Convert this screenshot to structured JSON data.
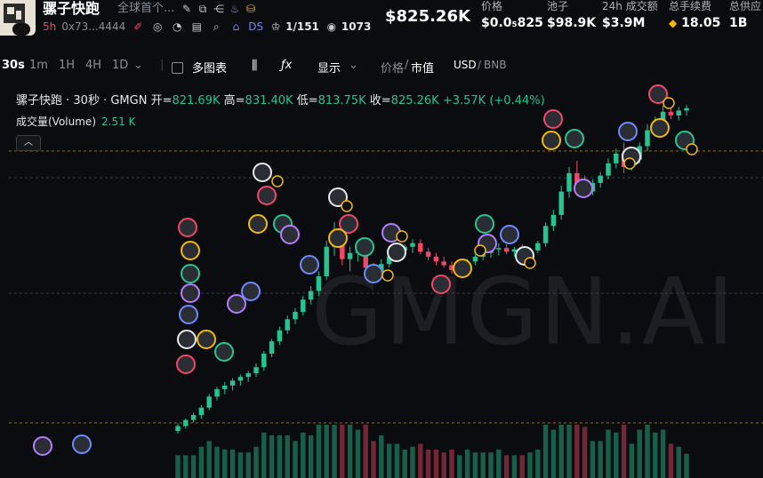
{
  "token": {
    "name": "骡子快跑",
    "desc": "全球首个...",
    "age": "5h",
    "address": "0x73...4444",
    "ds_label": "DS",
    "holders_ratio": "1/151",
    "views": "1073",
    "icons": [
      "edit-icon",
      "copy-icon",
      "share-icon",
      "fire-icon",
      "bag-icon",
      "pen-icon",
      "globe-icon",
      "chart-icon",
      "note-icon",
      "search-icon",
      "home-icon",
      "crown-icon",
      "eye-icon"
    ]
  },
  "header": {
    "price_main": "$825.26K",
    "stats": [
      {
        "label": "价格",
        "value": "$0.0₅825"
      },
      {
        "label": "池子",
        "value": "$98.9K"
      },
      {
        "label": "24h 成交额",
        "value": "$3.9M"
      },
      {
        "label": "总手续费",
        "value": "18.05"
      },
      {
        "label": "总供应",
        "value": "1B"
      }
    ]
  },
  "toolbar": {
    "intervals": [
      "30s",
      "1m",
      "1H",
      "4H",
      "1D"
    ],
    "active_interval": "30s",
    "multi_chart": "多图表",
    "display": "显示",
    "price_label": "价格",
    "mcap_label": "市值",
    "usd": "USD",
    "bnb": "BNB"
  },
  "legend": {
    "title": "骡子快跑 · 30秒 · GMGN",
    "open_label": "开=",
    "open": "821.69K",
    "high_label": "高=",
    "high": "831.40K",
    "low_label": "低=",
    "low": "813.75K",
    "close_label": "收=",
    "close": "825.26K",
    "change": "+3.57K (+0.44%)",
    "volume_label": "成交量(Volume)",
    "volume": "2.51 K"
  },
  "watermark": "GMGN.AI",
  "colors": {
    "up": "#27c48f",
    "down": "#f04866",
    "bg": "#0b0c0f",
    "accent": "#f0b90b"
  },
  "chart_data": {
    "type": "candlestick",
    "candles": [
      {
        "o": 300,
        "h": 312,
        "l": 296,
        "c": 308
      },
      {
        "o": 308,
        "h": 320,
        "l": 304,
        "c": 318
      },
      {
        "o": 318,
        "h": 330,
        "l": 314,
        "c": 326
      },
      {
        "o": 326,
        "h": 342,
        "l": 320,
        "c": 338
      },
      {
        "o": 338,
        "h": 360,
        "l": 334,
        "c": 356
      },
      {
        "o": 356,
        "h": 372,
        "l": 350,
        "c": 368
      },
      {
        "o": 368,
        "h": 380,
        "l": 360,
        "c": 374
      },
      {
        "o": 374,
        "h": 386,
        "l": 366,
        "c": 382
      },
      {
        "o": 382,
        "h": 392,
        "l": 374,
        "c": 388
      },
      {
        "o": 388,
        "h": 398,
        "l": 380,
        "c": 394
      },
      {
        "o": 394,
        "h": 410,
        "l": 388,
        "c": 404
      },
      {
        "o": 404,
        "h": 430,
        "l": 398,
        "c": 426
      },
      {
        "o": 426,
        "h": 450,
        "l": 420,
        "c": 446
      },
      {
        "o": 446,
        "h": 470,
        "l": 440,
        "c": 464
      },
      {
        "o": 464,
        "h": 488,
        "l": 458,
        "c": 482
      },
      {
        "o": 482,
        "h": 500,
        "l": 474,
        "c": 494
      },
      {
        "o": 494,
        "h": 520,
        "l": 488,
        "c": 514
      },
      {
        "o": 514,
        "h": 536,
        "l": 506,
        "c": 528
      },
      {
        "o": 528,
        "h": 560,
        "l": 520,
        "c": 552
      },
      {
        "o": 552,
        "h": 610,
        "l": 546,
        "c": 600
      },
      {
        "o": 600,
        "h": 640,
        "l": 585,
        "c": 620
      },
      {
        "o": 620,
        "h": 628,
        "l": 570,
        "c": 580
      },
      {
        "o": 580,
        "h": 600,
        "l": 560,
        "c": 590
      },
      {
        "o": 590,
        "h": 610,
        "l": 576,
        "c": 596
      },
      {
        "o": 596,
        "h": 604,
        "l": 560,
        "c": 566
      },
      {
        "o": 566,
        "h": 574,
        "l": 548,
        "c": 556
      },
      {
        "o": 556,
        "h": 580,
        "l": 550,
        "c": 572
      },
      {
        "o": 572,
        "h": 590,
        "l": 566,
        "c": 584
      },
      {
        "o": 584,
        "h": 600,
        "l": 576,
        "c": 594
      },
      {
        "o": 594,
        "h": 604,
        "l": 584,
        "c": 600
      },
      {
        "o": 600,
        "h": 612,
        "l": 590,
        "c": 606
      },
      {
        "o": 606,
        "h": 612,
        "l": 588,
        "c": 592
      },
      {
        "o": 592,
        "h": 598,
        "l": 578,
        "c": 584
      },
      {
        "o": 584,
        "h": 590,
        "l": 570,
        "c": 576
      },
      {
        "o": 576,
        "h": 584,
        "l": 566,
        "c": 570
      },
      {
        "o": 570,
        "h": 576,
        "l": 556,
        "c": 562
      },
      {
        "o": 562,
        "h": 570,
        "l": 554,
        "c": 566
      },
      {
        "o": 566,
        "h": 580,
        "l": 560,
        "c": 576
      },
      {
        "o": 576,
        "h": 588,
        "l": 570,
        "c": 584
      },
      {
        "o": 584,
        "h": 596,
        "l": 578,
        "c": 590
      },
      {
        "o": 590,
        "h": 600,
        "l": 582,
        "c": 596
      },
      {
        "o": 596,
        "h": 606,
        "l": 586,
        "c": 598
      },
      {
        "o": 598,
        "h": 604,
        "l": 588,
        "c": 592
      },
      {
        "o": 592,
        "h": 600,
        "l": 584,
        "c": 596
      },
      {
        "o": 596,
        "h": 604,
        "l": 588,
        "c": 590
      },
      {
        "o": 590,
        "h": 598,
        "l": 580,
        "c": 594
      },
      {
        "o": 594,
        "h": 610,
        "l": 590,
        "c": 606
      },
      {
        "o": 606,
        "h": 640,
        "l": 600,
        "c": 634
      },
      {
        "o": 634,
        "h": 660,
        "l": 626,
        "c": 652
      },
      {
        "o": 652,
        "h": 700,
        "l": 644,
        "c": 690
      },
      {
        "o": 690,
        "h": 730,
        "l": 680,
        "c": 720
      },
      {
        "o": 720,
        "h": 740,
        "l": 690,
        "c": 700
      },
      {
        "o": 700,
        "h": 716,
        "l": 680,
        "c": 690
      },
      {
        "o": 690,
        "h": 710,
        "l": 684,
        "c": 704
      },
      {
        "o": 704,
        "h": 722,
        "l": 696,
        "c": 716
      },
      {
        "o": 716,
        "h": 744,
        "l": 710,
        "c": 736
      },
      {
        "o": 736,
        "h": 760,
        "l": 728,
        "c": 752
      },
      {
        "o": 752,
        "h": 770,
        "l": 720,
        "c": 730
      },
      {
        "o": 730,
        "h": 748,
        "l": 724,
        "c": 742
      },
      {
        "o": 742,
        "h": 770,
        "l": 736,
        "c": 764
      },
      {
        "o": 764,
        "h": 800,
        "l": 756,
        "c": 790
      },
      {
        "o": 790,
        "h": 812,
        "l": 780,
        "c": 802
      },
      {
        "o": 802,
        "h": 830,
        "l": 796,
        "c": 820
      },
      {
        "o": 820,
        "h": 832,
        "l": 808,
        "c": 814
      },
      {
        "o": 814,
        "h": 828,
        "l": 806,
        "c": 822
      },
      {
        "o": 822,
        "h": 831,
        "l": 814,
        "c": 826
      }
    ]
  }
}
